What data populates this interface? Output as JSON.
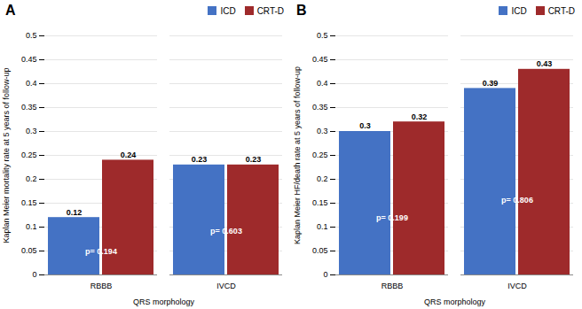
{
  "chart_data": [
    {
      "type": "bar",
      "title": "A",
      "categories": [
        "RBBB",
        "IVCD"
      ],
      "series": [
        {
          "name": "ICD",
          "color": "#4472C4",
          "values": [
            0.12,
            0.23
          ]
        },
        {
          "name": "CRT-D",
          "color": "#9E2A2B",
          "values": [
            0.24,
            0.23
          ]
        }
      ],
      "annotations": [
        {
          "category": "RBBB",
          "text": "p= 0.194"
        },
        {
          "category": "IVCD",
          "text": "p= 0.603"
        }
      ],
      "xlabel": "QRS morphology",
      "ylabel": "Kaplan Meier mortality rate at 5 years of follow-up",
      "ylim": [
        0,
        0.5
      ],
      "yticks": [
        0,
        0.05,
        0.1,
        0.15,
        0.2,
        0.25,
        0.3,
        0.35,
        0.4,
        0.45,
        0.5
      ],
      "grid": true,
      "legend": "upper right",
      "data_labels": true
    },
    {
      "type": "bar",
      "title": "B",
      "categories": [
        "RBBB",
        "IVCD"
      ],
      "series": [
        {
          "name": "ICD",
          "color": "#4472C4",
          "values": [
            0.3,
            0.39
          ]
        },
        {
          "name": "CRT-D",
          "color": "#9E2A2B",
          "values": [
            0.32,
            0.43
          ]
        }
      ],
      "annotations": [
        {
          "category": "RBBB",
          "text": "p= 0.199"
        },
        {
          "category": "IVCD",
          "text": "p= 0.806"
        }
      ],
      "xlabel": "QRS morphology",
      "ylabel": "Kaplan Meier HF/death rate at 5 years of follow-up",
      "ylim": [
        0,
        0.5
      ],
      "yticks": [
        0,
        0.05,
        0.1,
        0.15,
        0.2,
        0.25,
        0.3,
        0.35,
        0.4,
        0.45,
        0.5
      ],
      "grid": true,
      "legend": "upper right",
      "data_labels": true
    }
  ]
}
